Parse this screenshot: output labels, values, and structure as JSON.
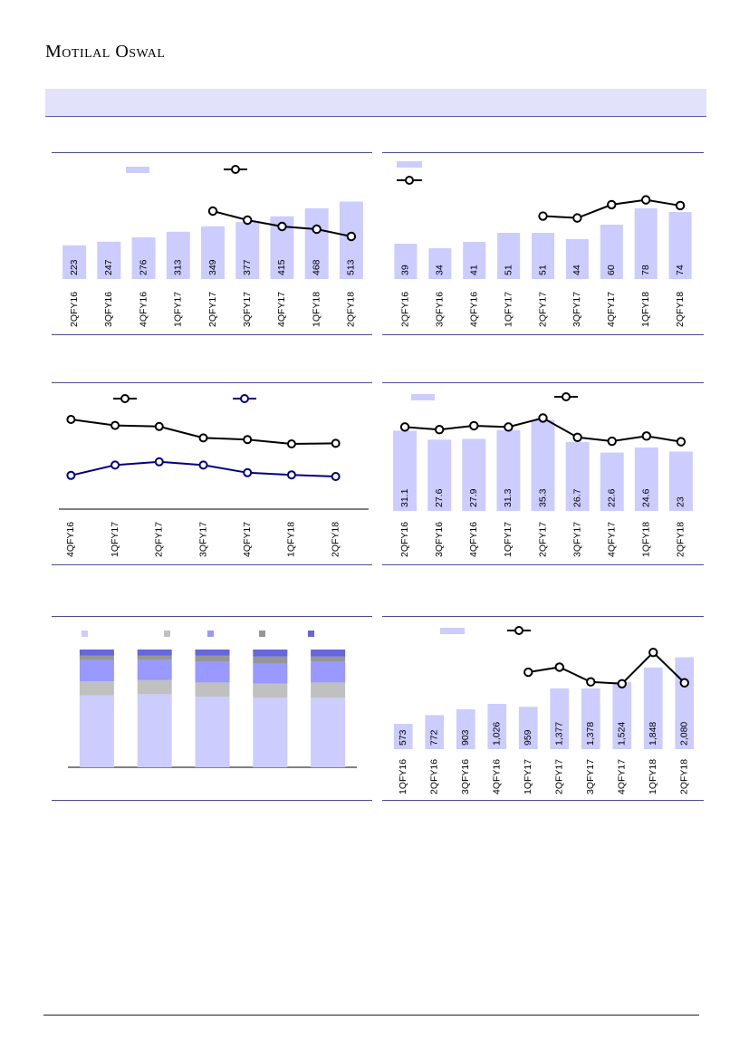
{
  "header": {
    "brand": "Motilal Oswal"
  },
  "colors": {
    "bar": "#ccccff",
    "line": "#000000",
    "line_blue": "#000080",
    "mix1": "#ccccff",
    "mix2": "#c0c0c0",
    "mix3": "#9999ff",
    "mix4": "#969696",
    "mix5": "#6666dd",
    "rule": "#4d4d8f"
  },
  "chart_data": [
    {
      "type": "bar",
      "categories": [
        "2QFY16",
        "3QFY16",
        "4QFY16",
        "1QFY17",
        "2QFY17",
        "3QFY17",
        "4QFY17",
        "1QFY18",
        "2QFY18"
      ],
      "series": [
        {
          "values": [
            223,
            247,
            276,
            313,
            349,
            377,
            415,
            468,
            513
          ]
        },
        {
          "type": "line",
          "values": [
            null,
            null,
            null,
            null,
            50,
            40,
            33,
            30,
            22
          ]
        }
      ],
      "ylim": [
        0,
        540
      ],
      "y2lim": [
        -25,
        65
      ],
      "legend": "top"
    },
    {
      "type": "bar",
      "categories": [
        "2QFY16",
        "3QFY16",
        "4QFY16",
        "1QFY17",
        "2QFY17",
        "3QFY17",
        "4QFY17",
        "1QFY18",
        "2QFY18"
      ],
      "series": [
        {
          "values": [
            39,
            34,
            41,
            51,
            51,
            44,
            60,
            78,
            74
          ]
        },
        {
          "type": "line",
          "values": [
            null,
            null,
            null,
            null,
            31,
            29,
            43,
            48,
            42
          ]
        }
      ],
      "ylim": [
        0,
        100
      ],
      "y2lim": [
        -35,
        60
      ],
      "legend": "top-left"
    },
    {
      "type": "line",
      "categories": [
        "4QFY16",
        "1QFY17",
        "2QFY17",
        "3QFY17",
        "4QFY17",
        "1QFY18",
        "2QFY18"
      ],
      "series": [
        {
          "values": [
            26.5,
            25.4,
            25.2,
            23.1,
            22.8,
            22.0,
            22.1
          ]
        },
        {
          "values": [
            16.2,
            18.1,
            18.7,
            18.1,
            16.7,
            16.3,
            16.0
          ]
        }
      ],
      "ylim": [
        10,
        30
      ],
      "legend": "top"
    },
    {
      "type": "bar",
      "categories": [
        "2QFY16",
        "3QFY16",
        "4QFY16",
        "1QFY17",
        "2QFY17",
        "3QFY17",
        "4QFY17",
        "1QFY18",
        "2QFY18"
      ],
      "series": [
        {
          "values": [
            31.1,
            27.6,
            27.9,
            31.3,
            35.3,
            26.7,
            22.6,
            24.6,
            23.0
          ]
        },
        {
          "type": "line",
          "values": [
            32.5,
            31.5,
            33,
            32.5,
            36,
            28.5,
            27,
            29,
            26.8
          ]
        }
      ],
      "ylim": [
        0,
        40
      ],
      "legend": "top"
    },
    {
      "type": "bar",
      "stacked": true,
      "categories": [
        "",
        "",
        "",
        "",
        ""
      ],
      "series": [
        {
          "values": [
            61,
            62,
            60,
            59,
            59
          ]
        },
        {
          "values": [
            12,
            12,
            12,
            12,
            13
          ]
        },
        {
          "values": [
            18,
            17,
            18,
            17,
            18
          ]
        },
        {
          "values": [
            4,
            4,
            5,
            6,
            4
          ]
        },
        {
          "values": [
            5,
            5,
            5,
            6,
            6
          ]
        }
      ],
      "ylim": [
        0,
        100
      ],
      "legend": "top"
    },
    {
      "type": "bar",
      "categories": [
        "1QFY16",
        "2QFY16",
        "3QFY16",
        "4QFY16",
        "1QFY17",
        "2QFY17",
        "3QFY17",
        "4QFY17",
        "1QFY18",
        "2QFY18"
      ],
      "series": [
        {
          "values": [
            573,
            772,
            903,
            1026,
            959,
            1377,
            1378,
            1524,
            1848,
            2080
          ]
        },
        {
          "type": "line",
          "values": [
            null,
            null,
            null,
            null,
            67,
            78,
            46,
            42,
            110,
            44
          ]
        }
      ],
      "ylim": [
        0,
        2400
      ],
      "y2lim": [
        -100,
        130
      ],
      "legend": "top"
    }
  ]
}
